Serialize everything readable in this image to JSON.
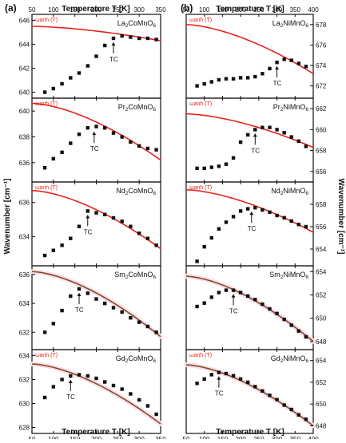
{
  "figure": {
    "panel_labels": [
      "(a)",
      "(b)"
    ],
    "top_axis_title": "Temperature T [K]",
    "bottom_axis_title": "Temperature T [K]",
    "y_axis_title": "Wavenumber [cm⁻¹]",
    "fit_label": "ωanh (T)",
    "tc_label": "TC"
  },
  "colors": {
    "fit_red": "#e8231c",
    "fit_brown": "#8a4a1a",
    "marker": "#111111",
    "axis": "#111111",
    "pink_tint": "#f7dff0"
  },
  "chart_data": [
    {
      "type": "scatter",
      "title": "La2CoMnO6",
      "column": "a",
      "xlim": [
        50,
        350
      ],
      "ylim": [
        639.5,
        646.5
      ],
      "yticks": [
        640,
        642,
        644,
        646
      ],
      "x": [
        80,
        100,
        120,
        140,
        160,
        180,
        200,
        220,
        240,
        260,
        280,
        300,
        320,
        340
      ],
      "y": [
        640.0,
        640.3,
        640.7,
        641.2,
        641.6,
        642.2,
        643.0,
        643.9,
        644.5,
        644.7,
        644.6,
        644.5,
        644.5,
        644.4
      ],
      "fit_x": [
        50,
        350
      ],
      "fit_y": [
        645.5,
        644.3
      ],
      "fit_color": "red",
      "tc_x": 240,
      "fit_label": "ωanh (T)"
    },
    {
      "type": "scatter",
      "title": "Pr2CoMnO6",
      "column": "a",
      "xlim": [
        50,
        350
      ],
      "ylim": [
        634.5,
        641.0
      ],
      "yticks": [
        636,
        638,
        640
      ],
      "x": [
        80,
        100,
        120,
        140,
        160,
        180,
        200,
        220,
        240,
        260,
        280,
        300,
        320,
        340
      ],
      "y": [
        635.6,
        636.3,
        636.8,
        637.5,
        638.2,
        638.7,
        638.8,
        638.7,
        638.3,
        638.0,
        637.6,
        637.3,
        637.1,
        637.0
      ],
      "fit_x": [
        50,
        350
      ],
      "fit_y": [
        640.6,
        636.2
      ],
      "fit_color": "red",
      "tc_x": 195,
      "fit_label": "ωanh (T)"
    },
    {
      "type": "scatter",
      "title": "Nd2CoMnO6",
      "column": "a",
      "xlim": [
        50,
        350
      ],
      "ylim": [
        632.3,
        637.2
      ],
      "yticks": [
        634,
        636
      ],
      "x": [
        80,
        100,
        120,
        140,
        160,
        180,
        200,
        220,
        240,
        260,
        280,
        300,
        320,
        340
      ],
      "y": [
        632.9,
        633.2,
        633.5,
        633.9,
        634.6,
        635.5,
        635.4,
        635.3,
        635.1,
        634.9,
        634.6,
        634.2,
        633.9,
        633.5
      ],
      "fit_x": [
        50,
        350
      ],
      "fit_y": [
        636.7,
        633.3
      ],
      "fit_color": "red",
      "tc_x": 180,
      "fit_label": "ωanh (T)"
    },
    {
      "type": "scatter",
      "title": "Sm2CoMnO6",
      "column": "a",
      "xlim": [
        50,
        350
      ],
      "ylim": [
        630.8,
        636.6
      ],
      "yticks": [
        632,
        634,
        636
      ],
      "x": [
        80,
        100,
        120,
        140,
        160,
        180,
        200,
        220,
        240,
        260,
        280,
        300,
        320,
        340
      ],
      "y": [
        632.0,
        632.6,
        633.5,
        634.5,
        635.0,
        634.7,
        634.3,
        634.0,
        633.7,
        633.4,
        633.0,
        632.7,
        632.4,
        632.0
      ],
      "fit_x": [
        50,
        350
      ],
      "fit_y": [
        636.2,
        631.7
      ],
      "fit_color": "brown",
      "tc_x": 160,
      "fit_label": ""
    },
    {
      "type": "scatter",
      "title": "Gd2CoMnO6",
      "column": "a",
      "xlim": [
        50,
        350
      ],
      "ylim": [
        627.5,
        634.5
      ],
      "yticks": [
        628,
        630,
        632,
        634
      ],
      "x": [
        80,
        100,
        120,
        140,
        160,
        180,
        200,
        220,
        240,
        260,
        280,
        300,
        320,
        340
      ],
      "y": [
        630.5,
        631.4,
        632.0,
        632.3,
        632.4,
        632.3,
        632.1,
        631.8,
        631.5,
        631.2,
        630.8,
        630.3,
        629.8,
        629.1
      ],
      "fit_x": [
        50,
        350
      ],
      "fit_y": [
        633.3,
        628.3
      ],
      "fit_color": "brown",
      "tc_x": 140,
      "fit_label": "ωanh (T)"
    },
    {
      "type": "scatter",
      "title": "La2NiMnO6",
      "column": "b",
      "xlim": [
        50,
        400
      ],
      "ylim": [
        670.8,
        679.0
      ],
      "yticks": [
        672,
        674,
        676,
        678
      ],
      "x": [
        80,
        100,
        120,
        140,
        160,
        180,
        200,
        220,
        240,
        260,
        280,
        300,
        320,
        340,
        360,
        380
      ],
      "y": [
        672.0,
        672.2,
        672.4,
        672.6,
        672.7,
        672.7,
        672.8,
        672.8,
        672.9,
        673.2,
        673.7,
        674.3,
        674.6,
        674.5,
        674.2,
        673.9
      ],
      "fit_x": [
        50,
        400
      ],
      "fit_y": [
        678.0,
        673.2
      ],
      "fit_color": "red",
      "tc_x": 300,
      "fit_label": "ωanh (T)"
    },
    {
      "type": "scatter",
      "title": "Pr2NiMnO6",
      "column": "b",
      "xlim": [
        50,
        400
      ],
      "ylim": [
        655.0,
        663.0
      ],
      "yticks": [
        656,
        658,
        660,
        662
      ],
      "x": [
        80,
        100,
        120,
        140,
        160,
        180,
        200,
        220,
        240,
        260,
        280,
        300,
        320,
        340,
        360,
        380
      ],
      "y": [
        656.3,
        656.3,
        656.4,
        656.5,
        656.7,
        657.3,
        658.8,
        659.5,
        660.0,
        660.2,
        660.2,
        660.0,
        659.7,
        659.3,
        658.9,
        658.4
      ],
      "fit_x": [
        50,
        400
      ],
      "fit_y": [
        661.5,
        658.3
      ],
      "fit_color": "red",
      "tc_x": 240,
      "fit_label": "ωanh (T)"
    },
    {
      "type": "scatter",
      "title": "Nd2NiMnO6",
      "column": "b",
      "xlim": [
        50,
        400
      ],
      "ylim": [
        652.5,
        660.0
      ],
      "yticks": [
        654,
        656,
        658
      ],
      "x": [
        80,
        100,
        120,
        140,
        160,
        180,
        200,
        220,
        240,
        260,
        280,
        300,
        320,
        340,
        360,
        380
      ],
      "y": [
        652.9,
        654.2,
        655.0,
        655.8,
        656.4,
        656.9,
        657.4,
        657.6,
        657.7,
        657.5,
        657.3,
        657.0,
        656.8,
        656.5,
        656.2,
        656.0
      ],
      "fit_x": [
        50,
        400
      ],
      "fit_y": [
        659.3,
        655.5
      ],
      "fit_color": "red",
      "tc_x": 230,
      "fit_label": "ωanh (T)"
    },
    {
      "type": "scatter",
      "title": "Sm2NiMnO6",
      "column": "b",
      "xlim": [
        50,
        400
      ],
      "ylim": [
        647.3,
        654.5
      ],
      "yticks": [
        648,
        650,
        652,
        654
      ],
      "x": [
        80,
        100,
        120,
        140,
        160,
        180,
        200,
        220,
        240,
        260,
        280,
        300,
        320,
        340,
        360,
        380
      ],
      "y": [
        651.0,
        651.3,
        651.8,
        652.2,
        652.4,
        652.4,
        652.2,
        651.9,
        651.6,
        651.2,
        650.8,
        650.4,
        649.9,
        649.4,
        648.9,
        648.4
      ],
      "fit_x": [
        50,
        400
      ],
      "fit_y": [
        653.6,
        648.0
      ],
      "fit_color": "brown",
      "tc_x": 180,
      "fit_label": ""
    },
    {
      "type": "scatter",
      "title": "Gd2NiMnO6",
      "column": "b",
      "xlim": [
        50,
        400
      ],
      "ylim": [
        647.3,
        655.0
      ],
      "yticks": [
        648,
        650,
        652,
        654
      ],
      "x": [
        80,
        100,
        120,
        140,
        160,
        180,
        200,
        220,
        240,
        260,
        280,
        300,
        320,
        340,
        360,
        380
      ],
      "y": [
        651.9,
        652.3,
        652.7,
        652.9,
        652.8,
        652.6,
        652.3,
        652.0,
        651.6,
        651.2,
        650.8,
        650.4,
        649.9,
        649.5,
        649.0,
        648.6
      ],
      "fit_x": [
        50,
        400
      ],
      "fit_y": [
        653.6,
        648.0
      ],
      "fit_color": "brown",
      "tc_x": 140,
      "fit_label": "ωanh (T)"
    }
  ],
  "x_axes": {
    "a": {
      "xlim": [
        50,
        350
      ],
      "xticks": [
        50,
        100,
        150,
        200,
        250,
        300,
        350
      ]
    },
    "b": {
      "xlim": [
        50,
        400
      ],
      "xticks": [
        50,
        100,
        150,
        200,
        250,
        300,
        350,
        400
      ]
    }
  }
}
